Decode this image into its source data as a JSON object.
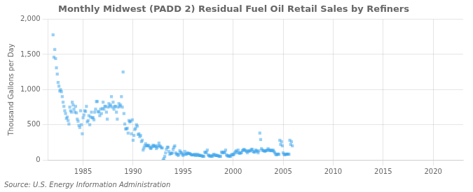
{
  "chart_data": {
    "type": "scatter",
    "title": "Monthly Midwest (PADD 2) Residual Fuel Oil Retail Sales by Refiners",
    "ylabel": "Thousand Gallons per Day",
    "annotations": [
      "Source: U.S. Energy Information Administration"
    ],
    "marker": "square",
    "grid": true,
    "xlim": [
      1981.5,
      2023
    ],
    "xticks": [
      1985,
      1990,
      1995,
      2000,
      2005,
      2010,
      2015,
      2020
    ],
    "ylim": [
      0,
      2000
    ],
    "yticks": [
      0,
      500,
      {
        "value": 1000,
        "label": "1,000"
      },
      {
        "value": 1500,
        "label": "1,500"
      },
      {
        "value": 2000,
        "label": "2,000"
      }
    ],
    "x": [
      1982.0,
      1982.083,
      1982.167,
      1982.25,
      1982.333,
      1982.417,
      1982.5,
      1982.583,
      1982.667,
      1982.75,
      1982.833,
      1982.917,
      1983.0,
      1983.083,
      1983.167,
      1983.25,
      1983.333,
      1983.417,
      1983.5,
      1983.583,
      1983.667,
      1983.75,
      1983.833,
      1983.917,
      1984.0,
      1984.083,
      1984.167,
      1984.25,
      1984.333,
      1984.417,
      1984.5,
      1984.583,
      1984.667,
      1984.75,
      1984.833,
      1984.917,
      1985.0,
      1985.083,
      1985.167,
      1985.25,
      1985.333,
      1985.417,
      1985.5,
      1985.583,
      1985.667,
      1985.75,
      1985.833,
      1985.917,
      1986.0,
      1986.083,
      1986.167,
      1986.25,
      1986.333,
      1986.417,
      1986.5,
      1986.583,
      1986.667,
      1986.75,
      1986.833,
      1986.917,
      1987.0,
      1987.083,
      1987.167,
      1987.25,
      1987.333,
      1987.417,
      1987.5,
      1987.583,
      1987.667,
      1987.75,
      1987.833,
      1987.917,
      1988.0,
      1988.083,
      1988.167,
      1988.25,
      1988.333,
      1988.417,
      1988.5,
      1988.583,
      1988.667,
      1988.75,
      1988.833,
      1988.917,
      1989.0,
      1989.083,
      1989.167,
      1989.25,
      1989.333,
      1989.417,
      1989.5,
      1989.583,
      1989.667,
      1989.75,
      1989.833,
      1989.917,
      1990.0,
      1990.083,
      1990.167,
      1990.25,
      1990.333,
      1990.417,
      1990.5,
      1990.583,
      1990.667,
      1990.75,
      1990.833,
      1990.917,
      1991.0,
      1991.083,
      1991.167,
      1991.25,
      1991.333,
      1991.417,
      1991.5,
      1991.583,
      1991.667,
      1991.75,
      1991.833,
      1991.917,
      1992.0,
      1992.083,
      1992.167,
      1992.25,
      1992.333,
      1992.417,
      1992.5,
      1992.583,
      1992.667,
      1992.75,
      1992.833,
      1992.917,
      1993.0,
      1993.083,
      1993.167,
      1993.25,
      1993.333,
      1993.417,
      1993.5,
      1993.583,
      1993.667,
      1993.75,
      1993.833,
      1993.917,
      1994.0,
      1994.083,
      1994.167,
      1994.25,
      1994.333,
      1994.417,
      1994.5,
      1994.583,
      1994.667,
      1994.75,
      1994.833,
      1994.917,
      1995.0,
      1995.083,
      1995.167,
      1995.25,
      1995.333,
      1995.417,
      1995.5,
      1995.583,
      1995.667,
      1995.75,
      1995.833,
      1995.917,
      1996.0,
      1996.083,
      1996.167,
      1996.25,
      1996.333,
      1996.417,
      1996.5,
      1996.583,
      1996.667,
      1996.75,
      1996.833,
      1996.917,
      1997.0,
      1997.083,
      1997.167,
      1997.25,
      1997.333,
      1997.417,
      1997.5,
      1997.583,
      1997.667,
      1997.75,
      1997.833,
      1997.917,
      1998.0,
      1998.083,
      1998.167,
      1998.25,
      1998.333,
      1998.417,
      1998.5,
      1998.583,
      1998.667,
      1998.75,
      1998.833,
      1998.917,
      1999.0,
      1999.083,
      1999.167,
      1999.25,
      1999.333,
      1999.417,
      1999.5,
      1999.583,
      1999.667,
      1999.75,
      1999.833,
      1999.917,
      2000.0,
      2000.083,
      2000.167,
      2000.25,
      2000.333,
      2000.417,
      2000.5,
      2000.583,
      2000.667,
      2000.75,
      2000.833,
      2000.917,
      2001.0,
      2001.083,
      2001.167,
      2001.25,
      2001.333,
      2001.417,
      2001.5,
      2001.583,
      2001.667,
      2001.75,
      2001.833,
      2001.917,
      2002.0,
      2002.083,
      2002.167,
      2002.25,
      2002.333,
      2002.417,
      2002.5,
      2002.583,
      2002.667,
      2002.75,
      2002.833,
      2002.917,
      2003.0,
      2003.083,
      2003.167,
      2003.25,
      2003.333,
      2003.417,
      2003.5,
      2003.583,
      2003.667,
      2003.75,
      2003.833,
      2003.917,
      2004.0,
      2004.083,
      2004.167,
      2004.25,
      2004.333,
      2004.417,
      2004.5,
      2004.583,
      2004.667,
      2004.75,
      2004.833,
      2004.917,
      2005.0,
      2005.083,
      2005.167,
      2005.25,
      2005.333,
      2005.417,
      2005.5,
      2005.583,
      2005.667,
      2005.75,
      2005.833,
      2005.917
    ],
    "values": [
      1780,
      1460,
      1570,
      1440,
      1310,
      1220,
      1100,
      1050,
      980,
      1000,
      970,
      900,
      820,
      760,
      700,
      660,
      590,
      610,
      560,
      510,
      750,
      700,
      680,
      820,
      780,
      720,
      680,
      760,
      670,
      580,
      550,
      490,
      460,
      700,
      500,
      370,
      600,
      640,
      700,
      690,
      760,
      540,
      560,
      630,
      500,
      610,
      680,
      600,
      600,
      570,
      680,
      720,
      830,
      830,
      690,
      680,
      630,
      720,
      660,
      730,
      820,
      720,
      760,
      760,
      680,
      580,
      750,
      800,
      760,
      780,
      900,
      750,
      820,
      720,
      760,
      760,
      680,
      580,
      750,
      800,
      760,
      780,
      900,
      750,
      1250,
      660,
      510,
      440,
      440,
      450,
      380,
      560,
      540,
      550,
      370,
      570,
      280,
      350,
      430,
      450,
      500,
      480,
      360,
      370,
      330,
      350,
      260,
      280,
      140,
      170,
      200,
      230,
      200,
      200,
      210,
      200,
      180,
      160,
      170,
      190,
      210,
      200,
      190,
      200,
      160,
      180,
      200,
      240,
      200,
      190,
      170,
      170,
      0,
      20,
      50,
      100,
      150,
      180,
      180,
      120,
      80,
      90,
      90,
      100,
      150,
      180,
      200,
      100,
      80,
      80,
      60,
      80,
      130,
      110,
      100,
      80,
      60,
      80,
      120,
      80,
      80,
      100,
      90,
      90,
      90,
      80,
      70,
      70,
      70,
      70,
      80,
      60,
      70,
      80,
      60,
      70,
      60,
      60,
      60,
      50,
      50,
      50,
      110,
      100,
      110,
      140,
      70,
      60,
      50,
      60,
      50,
      50,
      70,
      80,
      60,
      70,
      60,
      60,
      60,
      50,
      50,
      50,
      110,
      100,
      110,
      100,
      110,
      140,
      70,
      60,
      50,
      60,
      50,
      50,
      70,
      80,
      70,
      80,
      100,
      120,
      130,
      100,
      140,
      100,
      90,
      100,
      100,
      130,
      140,
      150,
      140,
      130,
      120,
      100,
      130,
      120,
      130,
      130,
      150,
      150,
      120,
      110,
      110,
      140,
      130,
      120,
      100,
      130,
      380,
      290,
      160,
      140,
      130,
      130,
      120,
      130,
      130,
      140,
      160,
      140,
      130,
      140,
      130,
      130,
      140,
      120,
      100,
      80,
      70,
      80,
      80,
      80,
      280,
      220,
      260,
      200,
      100,
      80,
      70,
      80,
      80,
      80,
      80,
      80,
      280,
      220,
      260,
      200
    ]
  }
}
